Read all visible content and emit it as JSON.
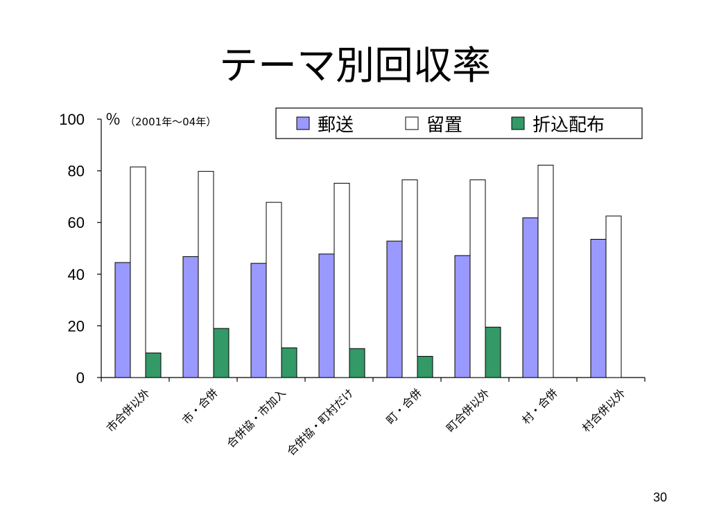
{
  "slide": {
    "title": "テーマ別回収率",
    "page_number": "30"
  },
  "chart_data": {
    "type": "bar",
    "title": "",
    "unit_label": "％",
    "period_label": "（2001年～04年）",
    "ylim": [
      0,
      100
    ],
    "yticks": [
      "0",
      "20",
      "40",
      "60",
      "80",
      "100"
    ],
    "grid": false,
    "legend_position": "top-right",
    "categories": [
      "市合併以外",
      "市・合併",
      "合併協・市加入",
      "合併協・町村だけ",
      "町・合併",
      "町合併以外",
      "村・合併",
      "村合併以外"
    ],
    "series": [
      {
        "name": "郵送",
        "color": "#9999ff",
        "values": [
          44.5,
          46.8,
          44.2,
          47.8,
          52.8,
          47.2,
          61.8,
          53.5
        ]
      },
      {
        "name": "留置",
        "color": "#ffffff",
        "values": [
          81.5,
          79.8,
          67.8,
          75.2,
          76.5,
          76.5,
          82.2,
          62.5
        ]
      },
      {
        "name": "折込配布",
        "color": "#339966",
        "values": [
          9.5,
          19.0,
          11.5,
          11.2,
          8.2,
          19.5,
          null,
          null
        ]
      }
    ]
  }
}
